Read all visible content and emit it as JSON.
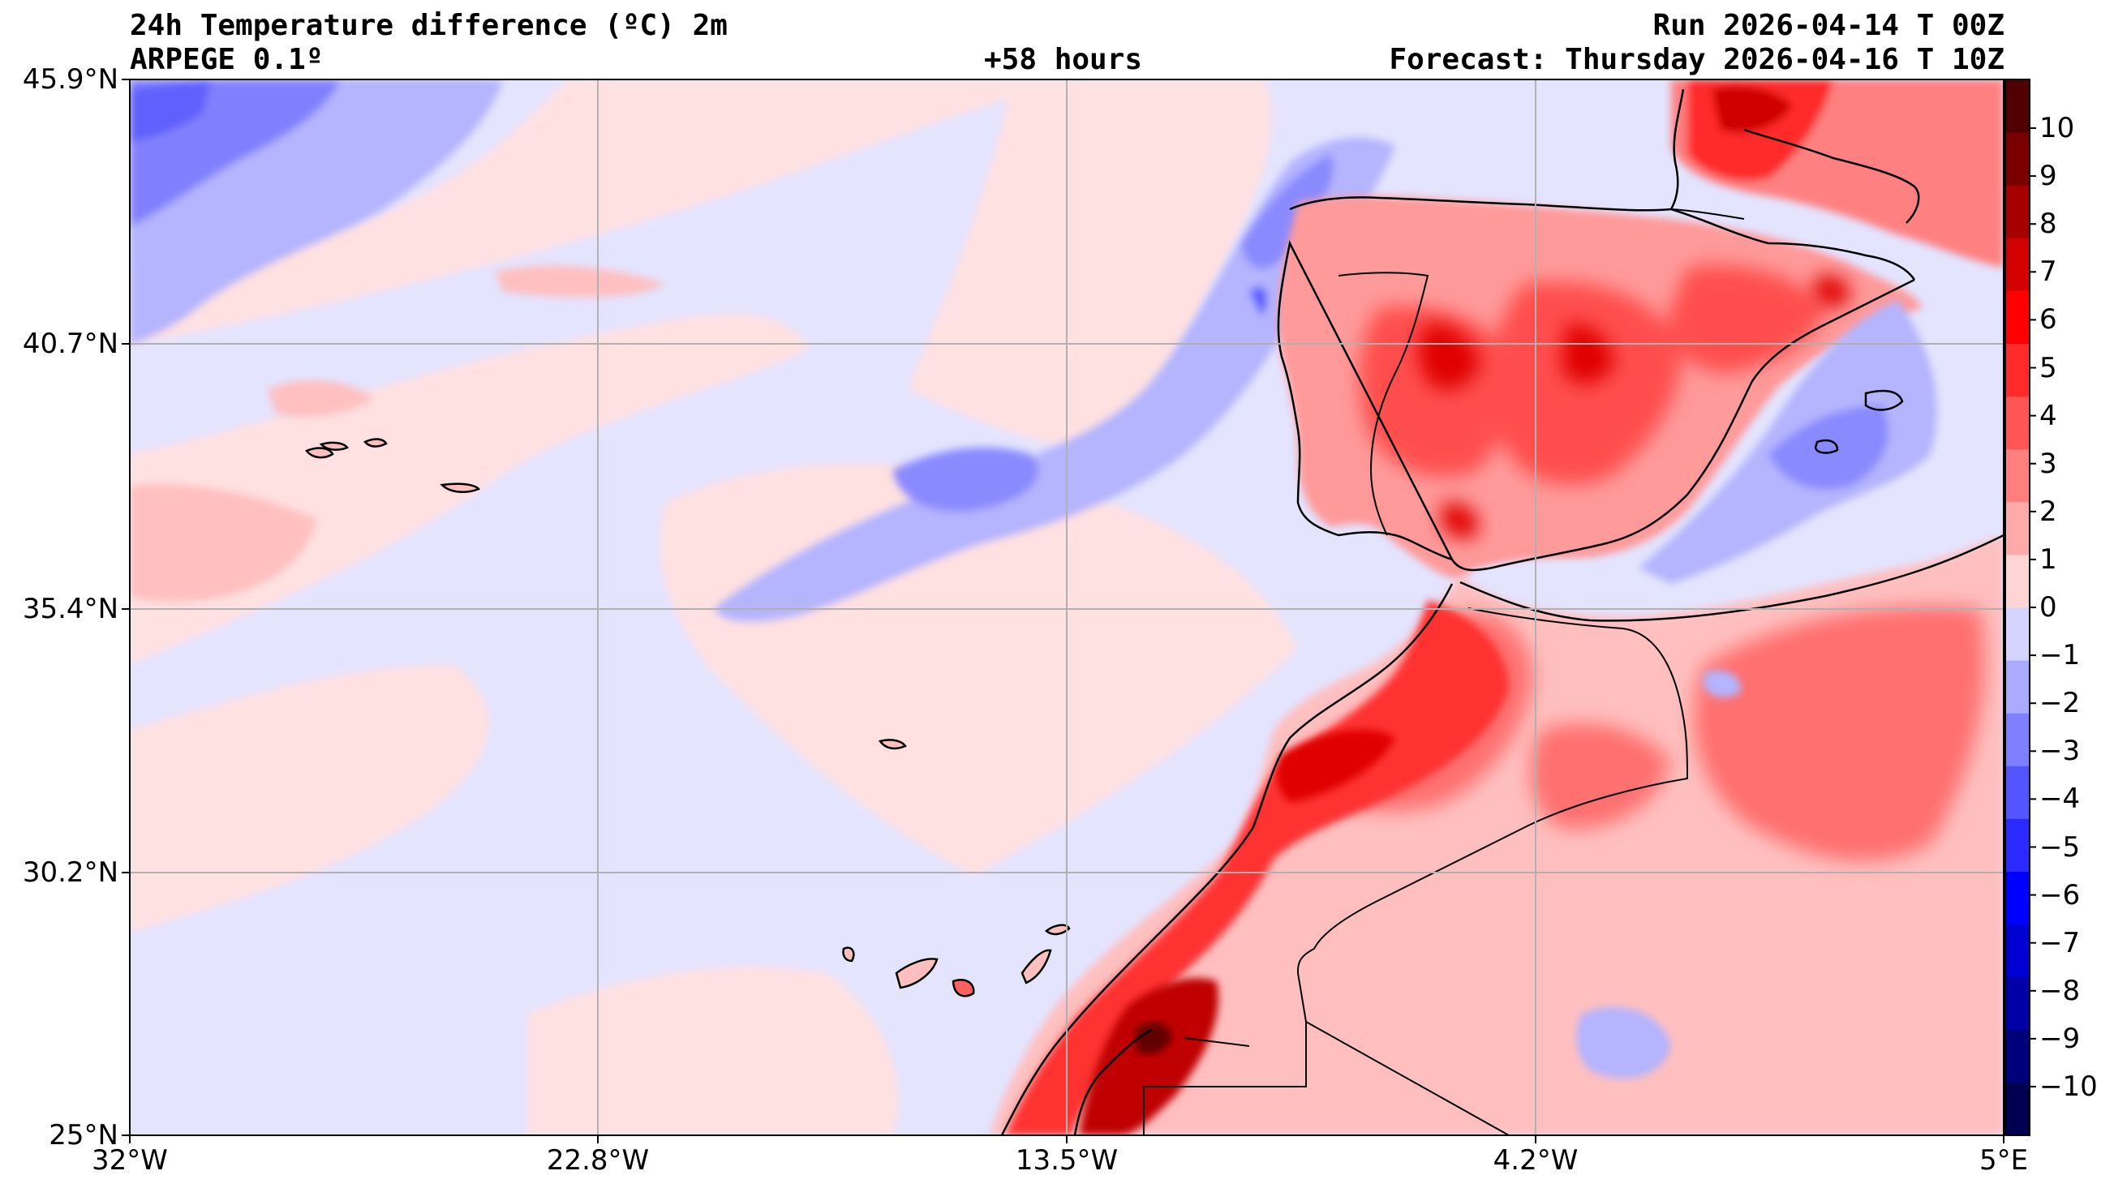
{
  "header": {
    "title": "24h Temperature difference (ºC) 2m",
    "model": "ARPEGE 0.1º",
    "run": "Run 2026-04-14 T 00Z",
    "lead": "+58 hours",
    "forecast": "Forecast: Thursday 2026-04-16 T 10Z"
  },
  "axes": {
    "lat_labels": [
      "45.9°N",
      "40.7°N",
      "35.4°N",
      "30.2°N",
      "25°N"
    ],
    "lon_labels": [
      "32°W",
      "22.8°W",
      "13.5°W",
      "4.2°W",
      "5°E"
    ]
  },
  "colorbar": {
    "labels": [
      "10",
      "9",
      "8",
      "7",
      "6",
      "5",
      "4",
      "3",
      "2",
      "1",
      "0",
      "−1",
      "−2",
      "−3",
      "−4",
      "−5",
      "−6",
      "−7",
      "−8",
      "−9",
      "−10"
    ],
    "colors": [
      "#000050",
      "#00007a",
      "#0000a6",
      "#0000d2",
      "#0000ff",
      "#2a2aff",
      "#5555ff",
      "#7f7fff",
      "#aaaaff",
      "#d4d4ff",
      "#ffd4d4",
      "#ffaaaa",
      "#ff7f7f",
      "#ff5555",
      "#ff2a2a",
      "#ff0000",
      "#d20000",
      "#a60000",
      "#7a0000",
      "#500000"
    ]
  },
  "colors": {
    "sea_neutral": "#e6e6ff",
    "land_neutral": "#ffe1e1",
    "grid": "#b0b0b0",
    "coast": "#000000"
  }
}
